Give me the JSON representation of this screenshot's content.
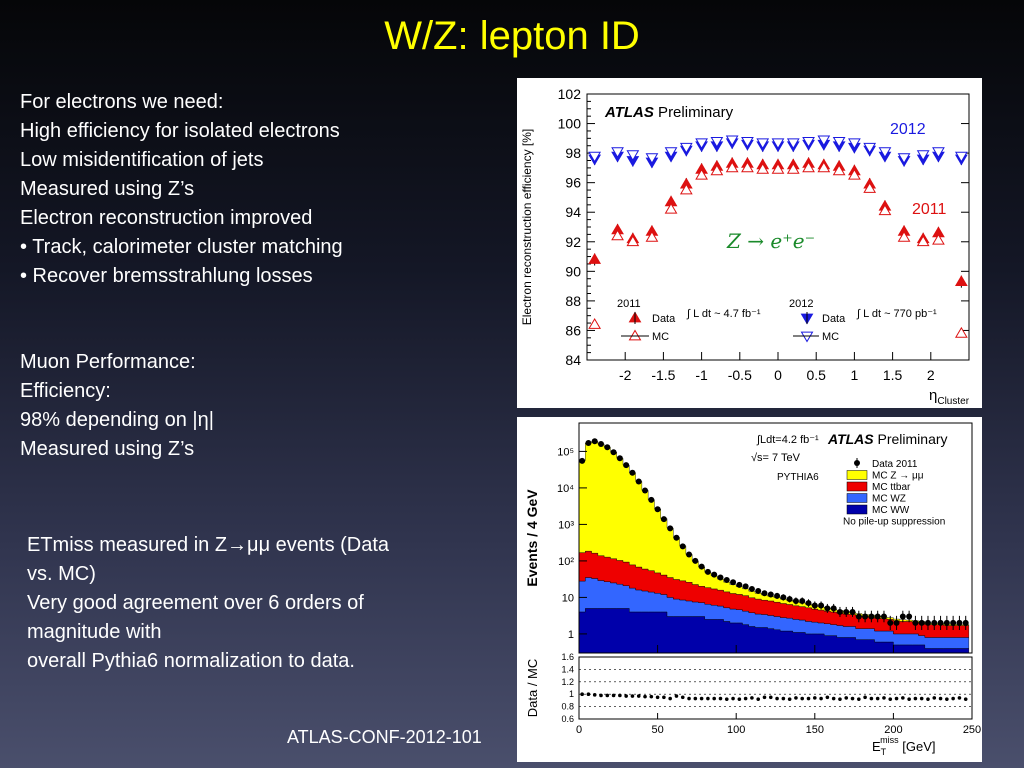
{
  "slide": {
    "title": "W/Z: lepton ID",
    "block1": [
      "For electrons we need:",
      "High efficiency for isolated electrons",
      "Low misidentification of jets",
      "Measured using Z’s",
      "Electron reconstruction improved",
      "• Track, calorimeter cluster matching",
      "• Recover bremsstrahlung losses"
    ],
    "block2": [
      "Muon Performance:",
      "Efficiency:",
      "98% depending on |η|",
      "Measured using Z’s"
    ],
    "block3": [
      "ETmiss measured in Z→μμ events (Data",
      "vs. MC)",
      "Very good agreement over 6 orders of",
      "magnitude with",
      "overall Pythia6 normalization to data."
    ],
    "footer": "ATLAS-CONF-2012-101"
  },
  "colors": {
    "title": "#ffff00",
    "red_2011": "#dd1111",
    "blue_2012": "#1a1ae0",
    "yellow": "#ffff00",
    "red": "#ee0000",
    "blue": "#3366ff",
    "navy": "#0000aa"
  },
  "chart_data": [
    {
      "type": "scatter",
      "ylabel": "Electron reconstruction efficiency [%]",
      "xlabel": "η",
      "xlabel_sub": "Cluster",
      "xlim": [
        -2.5,
        2.5
      ],
      "ylim": [
        84,
        102
      ],
      "xticks": [
        -2,
        -1.5,
        -1,
        -0.5,
        0,
        0.5,
        1,
        1.5,
        2
      ],
      "yticks": [
        84,
        86,
        88,
        90,
        92,
        94,
        96,
        98,
        100,
        102
      ],
      "atlas": "ATLAS",
      "atlas_sub": "Preliminary",
      "label_2012": "2012",
      "label_2011": "2011",
      "process": "Z → e⁺e⁻",
      "legend": {
        "year_2011": "2011",
        "year_2012": "2012",
        "data_label": "Data",
        "mc_label": "MC",
        "lumi_2011": "∫ L dt ~ 4.7 fb⁻¹",
        "lumi_2012": "∫ L dt ~ 770 pb⁻¹"
      },
      "x": [
        -2.4,
        -2.1,
        -1.9,
        -1.65,
        -1.4,
        -1.2,
        -1.0,
        -0.8,
        -0.6,
        -0.4,
        -0.2,
        0.0,
        0.2,
        0.4,
        0.6,
        0.8,
        1.0,
        1.2,
        1.4,
        1.65,
        1.9,
        2.1,
        2.4
      ],
      "series": [
        {
          "name": "Data",
          "group": "2012",
          "marker": "filled-triangle-down",
          "values": [
            97.6,
            97.8,
            97.5,
            97.4,
            97.8,
            98.2,
            98.5,
            98.5,
            98.7,
            98.6,
            98.5,
            98.5,
            98.5,
            98.6,
            98.6,
            98.5,
            98.4,
            98.2,
            97.8,
            97.5,
            97.6,
            97.8,
            97.6
          ]
        },
        {
          "name": "MC",
          "group": "2012",
          "marker": "open-triangle-down",
          "values": [
            97.8,
            98.1,
            97.9,
            97.7,
            98.1,
            98.4,
            98.7,
            98.8,
            98.9,
            98.8,
            98.7,
            98.7,
            98.7,
            98.8,
            98.9,
            98.8,
            98.7,
            98.4,
            98.1,
            97.7,
            97.9,
            98.1,
            97.8
          ]
        },
        {
          "name": "Data",
          "group": "2011",
          "marker": "filled-triangle-up",
          "values": [
            90.8,
            92.8,
            92.2,
            92.7,
            94.7,
            95.9,
            96.9,
            97.1,
            97.3,
            97.3,
            97.2,
            97.2,
            97.2,
            97.3,
            97.2,
            97.1,
            96.8,
            95.9,
            94.4,
            92.7,
            92.2,
            92.6,
            89.3
          ]
        },
        {
          "name": "MC",
          "group": "2011",
          "marker": "open-triangle-up",
          "values": [
            86.4,
            92.4,
            92.0,
            92.3,
            94.2,
            95.5,
            96.5,
            96.8,
            97.0,
            97.0,
            96.9,
            96.9,
            96.9,
            97.0,
            97.0,
            96.8,
            96.5,
            95.6,
            94.1,
            92.3,
            92.0,
            92.1,
            85.8
          ]
        }
      ]
    },
    {
      "type": "bar",
      "stacked": true,
      "log_y": true,
      "ylabel": "Events / 4 GeV",
      "xlabel_main": "E",
      "xlabel_sub": "T",
      "xlabel_sup": "miss",
      "xlabel_unit": "[GeV]",
      "xlim": [
        0,
        250
      ],
      "xticks": [
        0,
        50,
        100,
        150,
        200,
        250
      ],
      "yticks": [
        1,
        10,
        100,
        1000,
        10000,
        100000
      ],
      "ytick_labels": [
        "1",
        "10",
        "10²",
        "10³",
        "10⁴",
        "10⁵"
      ],
      "ratio_ylabel": "Data / MC",
      "ratio_ylim": [
        0.6,
        1.6
      ],
      "ratio_yticks": [
        0.6,
        0.8,
        1,
        1.2,
        1.4,
        1.6
      ],
      "ratio_ytick_labels": [
        "0.6",
        "0.8",
        "1",
        "1.2",
        "1.4",
        "1.6"
      ],
      "lumi": "∫Ldt=4.2 fb⁻¹",
      "sqrt_s": "√s= 7 TeV",
      "generator": "PYTHIA6",
      "atlas": "ATLAS",
      "atlas_sub": "Preliminary",
      "note": "No pile-up suppression",
      "bin_width": 4,
      "x": [
        2,
        6,
        10,
        14,
        18,
        22,
        26,
        30,
        34,
        38,
        42,
        46,
        50,
        54,
        58,
        62,
        66,
        70,
        74,
        78,
        82,
        86,
        90,
        94,
        98,
        102,
        106,
        110,
        114,
        118,
        122,
        126,
        130,
        134,
        138,
        142,
        146,
        150,
        154,
        158,
        162,
        166,
        170,
        174,
        178,
        182,
        186,
        190,
        194,
        198,
        202,
        206,
        210,
        214,
        218,
        222,
        226,
        230,
        234,
        238,
        242,
        246
      ],
      "data": [
        55000,
        170000,
        190000,
        160000,
        130000,
        95000,
        65000,
        42000,
        26000,
        15000,
        8500,
        4700,
        2600,
        1400,
        780,
        430,
        250,
        150,
        100,
        70,
        50,
        42,
        35,
        30,
        26,
        22,
        20,
        17,
        15,
        13,
        12,
        11,
        10,
        9,
        8,
        8,
        7,
        6,
        6,
        5,
        5,
        4,
        4,
        4,
        3,
        3,
        3,
        3,
        3,
        2,
        2,
        3,
        3,
        2,
        2,
        2,
        2,
        2,
        2,
        2,
        2,
        2
      ],
      "series": [
        {
          "name": "MC WW",
          "color": "#0000aa",
          "values": [
            4,
            5,
            5,
            5,
            5,
            5,
            5,
            5,
            4,
            4,
            4,
            4,
            4,
            4,
            3,
            3,
            3,
            3,
            3,
            3,
            2.5,
            2.5,
            2.5,
            2.2,
            2,
            2,
            1.8,
            1.6,
            1.5,
            1.5,
            1.4,
            1.3,
            1.2,
            1.2,
            1.1,
            1.1,
            1,
            1,
            1,
            0.9,
            0.9,
            0.8,
            0.8,
            0.8,
            0.7,
            0.7,
            0.7,
            0.6,
            0.6,
            0.6,
            0.5,
            0.5,
            0.5,
            0.5,
            0.5,
            0.4,
            0.4,
            0.4,
            0.4,
            0.4,
            0.4,
            0.4
          ]
        },
        {
          "name": "MC WZ",
          "color": "#3366ff",
          "values": [
            24,
            30,
            28,
            24,
            22,
            20,
            18,
            16,
            14,
            12,
            11,
            10,
            9,
            8,
            7,
            6,
            5.5,
            5,
            4.5,
            4.2,
            4,
            3.6,
            3.3,
            3,
            2.8,
            2.6,
            2.4,
            2.2,
            2,
            1.9,
            1.8,
            1.7,
            1.6,
            1.5,
            1.4,
            1.3,
            1.2,
            1.1,
            1,
            1,
            0.9,
            0.9,
            0.8,
            0.8,
            0.7,
            0.7,
            0.7,
            0.6,
            0.6,
            0.6,
            0.5,
            0.5,
            0.5,
            0.5,
            0.4,
            0.4,
            0.4,
            0.4,
            0.4,
            0.4,
            0.4,
            0.4
          ]
        },
        {
          "name": "MC ttbar",
          "color": "#ee0000",
          "values": [
            140,
            150,
            130,
            110,
            100,
            90,
            80,
            72,
            60,
            52,
            45,
            40,
            34,
            29,
            25,
            22,
            20,
            18,
            15,
            13,
            12,
            11,
            10,
            9,
            8,
            7.5,
            7,
            6,
            5.5,
            5,
            4.8,
            4.4,
            4,
            3.7,
            3.4,
            3.2,
            3,
            2.7,
            2.5,
            2.3,
            2.2,
            2,
            1.9,
            1.8,
            1.7,
            1.6,
            1.5,
            1.5,
            1.4,
            1.3,
            1.3,
            1.2,
            1.2,
            1.1,
            1.1,
            1,
            1,
            1,
            0.9,
            0.9,
            0.9,
            0.9
          ]
        },
        {
          "name": "MC Z → μμ",
          "color": "#ffff00",
          "values": [
            55000,
            170000,
            190000,
            160000,
            130000,
            95000,
            65000,
            42000,
            26000,
            15000,
            8500,
            4700,
            2600,
            1400,
            760,
            410,
            230,
            125,
            75,
            48,
            30,
            22,
            16,
            12,
            9.5,
            7.5,
            6,
            5,
            4,
            3.3,
            2.8,
            2.5,
            2.2,
            1.9,
            1.7,
            1.5,
            1.3,
            1.1,
            1.0,
            0.9,
            0.8,
            0.7,
            0.6,
            0.5,
            0.5,
            0.4,
            0.4,
            0.35,
            0.3,
            0.3,
            0.25,
            0.25,
            0.2,
            0.2,
            0.2,
            0.2,
            0.15,
            0.15,
            0.15,
            0.15,
            0.1,
            0.1
          ]
        }
      ],
      "data_series_name": "Data 2011",
      "ratio": [
        1.0,
        1.0,
        0.99,
        0.98,
        0.98,
        0.98,
        0.98,
        0.97,
        0.97,
        0.97,
        0.96,
        0.96,
        0.95,
        0.95,
        0.93,
        0.97,
        0.95,
        0.93,
        0.93,
        0.93,
        0.93,
        0.93,
        0.93,
        0.92,
        0.93,
        0.92,
        0.93,
        0.94,
        0.92,
        0.95,
        0.95,
        0.93,
        0.93,
        0.92,
        0.94,
        0.93,
        0.93,
        0.94,
        0.93,
        0.95,
        0.93,
        0.92,
        0.94,
        0.93,
        0.92,
        0.95,
        0.93,
        0.93,
        0.94,
        0.92,
        0.93,
        0.94,
        0.92,
        0.93,
        0.93,
        0.92,
        0.94,
        0.93,
        0.92,
        0.93,
        0.94,
        0.92
      ]
    }
  ]
}
